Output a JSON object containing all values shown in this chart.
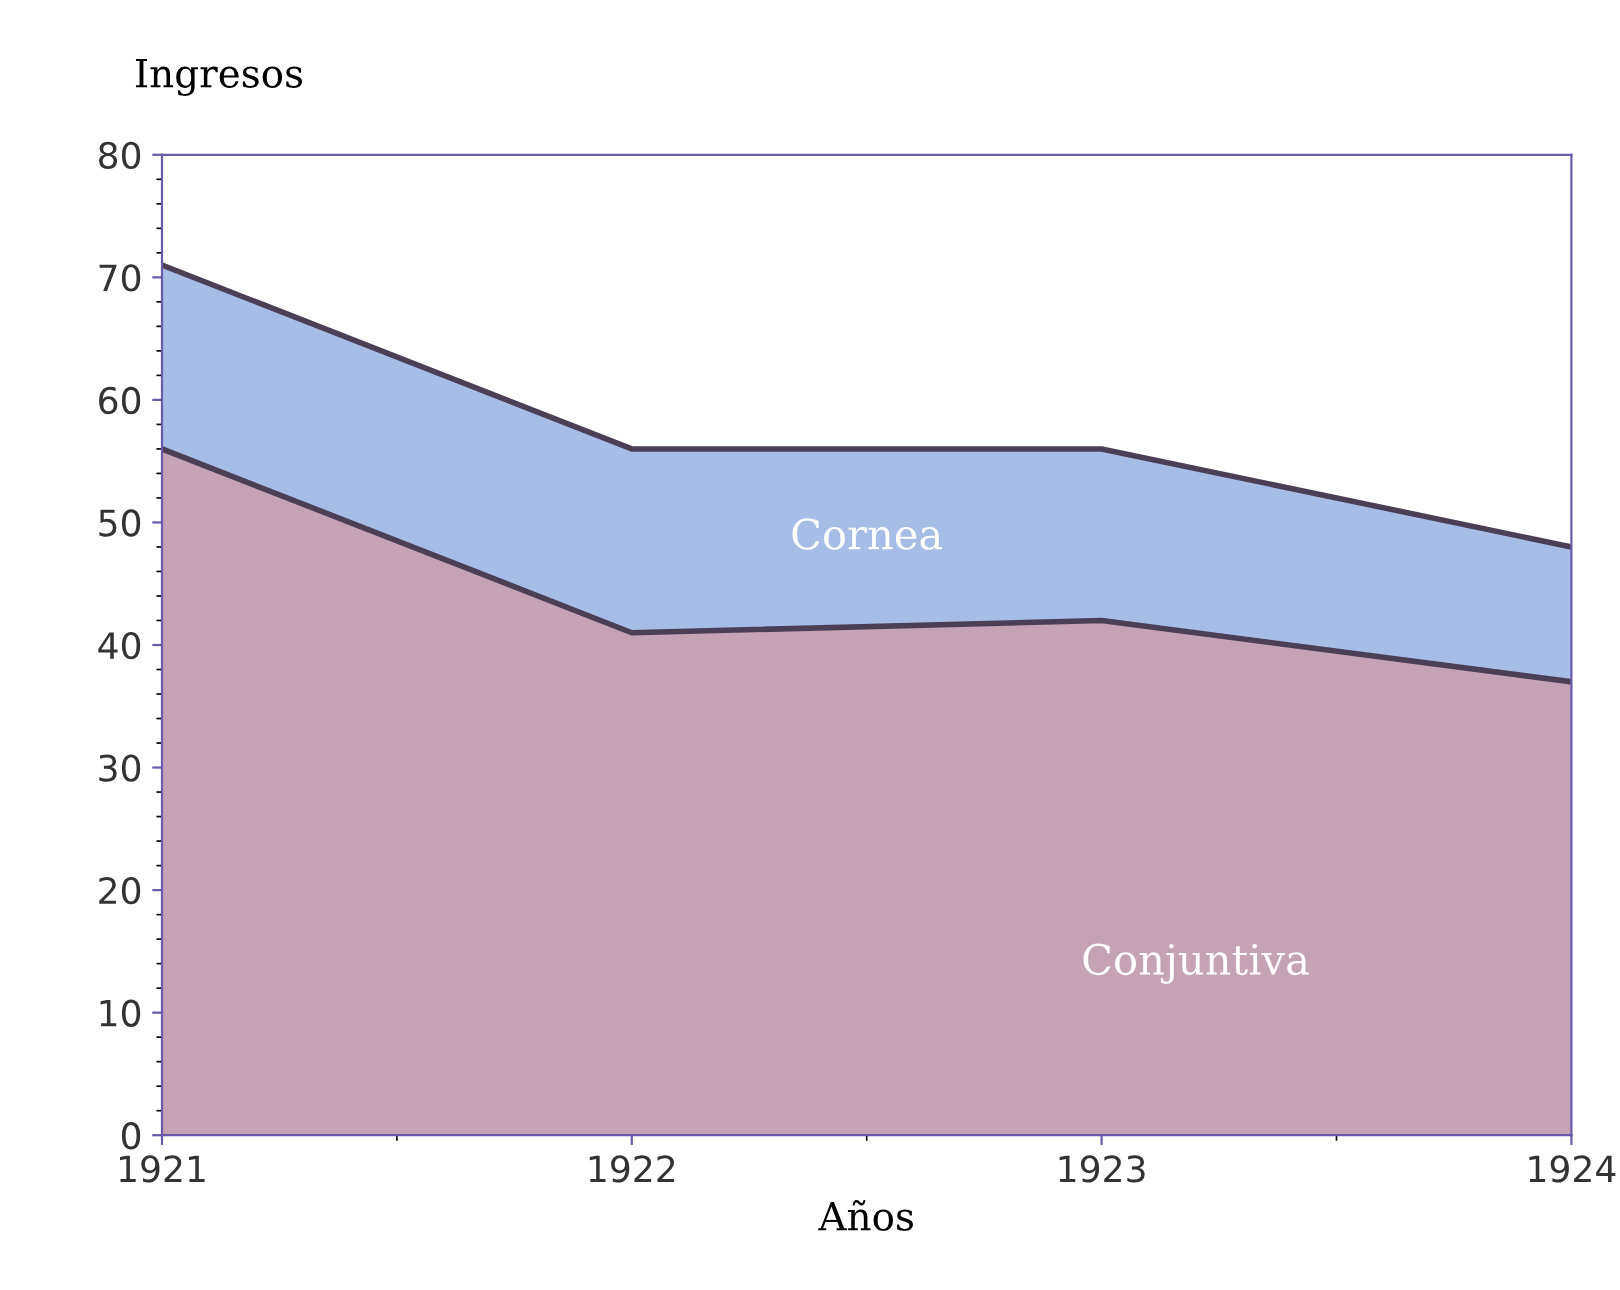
{
  "chart_data": {
    "type": "area",
    "stacked": true,
    "ylabel": "Ingresos",
    "xlabel": "Años",
    "x": [
      1921,
      1922,
      1923,
      1924
    ],
    "series": [
      {
        "name": "Conjuntiva",
        "color": "#c4a4b4",
        "values": [
          56,
          41,
          42,
          37
        ]
      },
      {
        "name": "Cornea",
        "color": "#a8bce8",
        "values": [
          15,
          15,
          14,
          11
        ]
      }
    ],
    "xlim": [
      1921,
      1924
    ],
    "xticks": [
      1921,
      1922,
      1923,
      1924
    ],
    "ylim": [
      0,
      80
    ],
    "yticks": [
      0,
      10,
      20,
      30,
      40,
      50,
      60,
      70,
      80
    ],
    "grid": false,
    "legend": false
  }
}
